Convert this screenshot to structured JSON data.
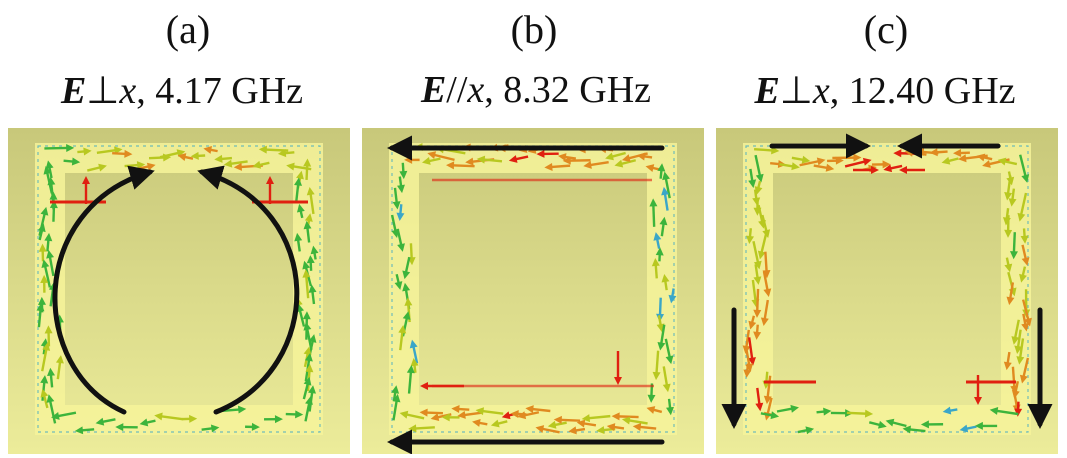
{
  "panels": [
    {
      "id": "a",
      "letter": "(a)",
      "field_symbol": "E",
      "relation": "⊥",
      "axis": "x",
      "frequency": ", 4.17 GHz",
      "arrows": "circular"
    },
    {
      "id": "b",
      "letter": "(b)",
      "field_symbol": "E",
      "relation": "//",
      "axis": "x",
      "frequency": ", 8.32 GHz",
      "arrows": "antiparallel-horizontal"
    },
    {
      "id": "c",
      "letter": "(c)",
      "field_symbol": "E",
      "relation": "⊥",
      "axis": "x",
      "frequency": ", 12.40 GHz",
      "arrows": "converging-top-down-sides"
    }
  ],
  "colors": {
    "background_top": "#c8c87a",
    "background_bottom": "#ecec9a",
    "ring": "#f6f39a",
    "arrow_black": "#111111",
    "vector_hot": "#e02010",
    "vector_warm": "#e08a20",
    "vector_mid": "#b8c820",
    "vector_cool": "#3cb43c",
    "vector_cold": "#3aa6c8"
  }
}
